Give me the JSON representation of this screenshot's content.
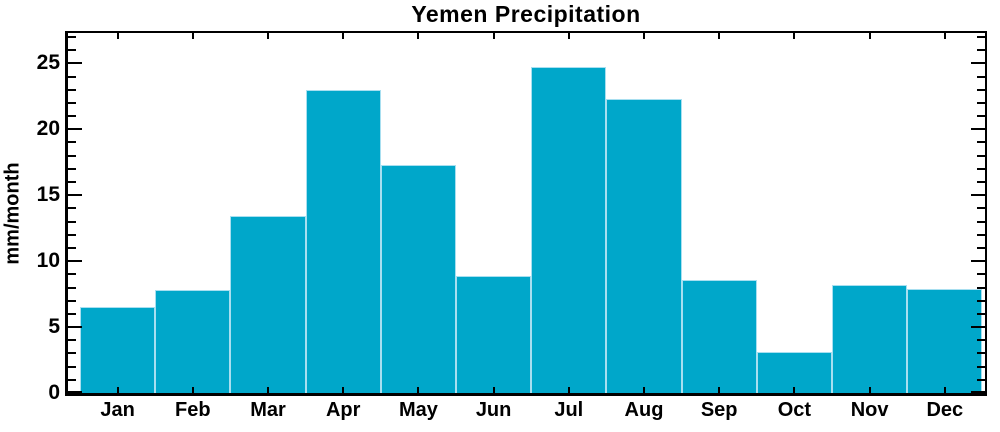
{
  "chart_data": {
    "type": "bar",
    "title": "Yemen Precipitation",
    "ylabel": "mm/month",
    "xlabel": "",
    "categories": [
      "Jan",
      "Feb",
      "Mar",
      "Apr",
      "May",
      "Jun",
      "Jul",
      "Aug",
      "Sep",
      "Oct",
      "Nov",
      "Dec"
    ],
    "values": [
      6.5,
      7.8,
      13.4,
      23.0,
      17.3,
      8.9,
      24.7,
      22.3,
      8.6,
      3.1,
      8.2,
      7.9
    ],
    "ylim": [
      0,
      27.3
    ],
    "yticks_major": [
      0,
      5,
      10,
      15,
      20,
      25
    ],
    "ytick_minor_step": 1,
    "grid": false,
    "legend": null,
    "colors": {
      "bar_fill": "#00a7ca",
      "bar_edge": "#a8dff0",
      "axis": "#000000",
      "text": "#000000",
      "background": "#ffffff"
    }
  }
}
